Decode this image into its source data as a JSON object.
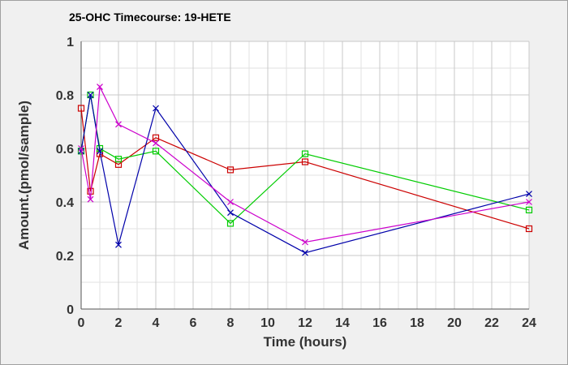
{
  "chart_data": {
    "type": "line",
    "title": "25-OHC Timecourse: 19-HETE",
    "xlabel": "Time (hours)",
    "ylabel": "Amount.(pmol/sample)",
    "xlim": [
      0,
      24
    ],
    "ylim": [
      0,
      1
    ],
    "xticks": [
      0,
      2,
      4,
      6,
      8,
      10,
      12,
      14,
      16,
      18,
      20,
      22,
      24
    ],
    "yticks": [
      0,
      0.2,
      0.4,
      0.6,
      0.8,
      1
    ],
    "ytick_labels": [
      "0",
      "0.2",
      "0.4",
      "0.6",
      "0.8",
      "1"
    ],
    "grid": true,
    "legend": "none",
    "series": [
      {
        "color": "#cc0000",
        "marker": "square",
        "points": [
          [
            0,
            0.75
          ],
          [
            0.5,
            0.44
          ],
          [
            1,
            0.58
          ],
          [
            2,
            0.54
          ],
          [
            4,
            0.64
          ],
          [
            8,
            0.52
          ],
          [
            12,
            0.55
          ],
          [
            24,
            0.3
          ]
        ]
      },
      {
        "color": "#00cc00",
        "marker": "square",
        "points": [
          [
            0,
            0.59
          ],
          [
            0.5,
            0.8
          ],
          [
            1,
            0.6
          ],
          [
            2,
            0.56
          ],
          [
            4,
            0.59
          ],
          [
            8,
            0.32
          ],
          [
            12,
            0.58
          ],
          [
            24,
            0.37
          ]
        ]
      },
      {
        "color": "#0000aa",
        "marker": "x",
        "points": [
          [
            0,
            0.59
          ],
          [
            0.5,
            0.8
          ],
          [
            1,
            0.59
          ],
          [
            2,
            0.24
          ],
          [
            4,
            0.75
          ],
          [
            8,
            0.36
          ],
          [
            12,
            0.21
          ],
          [
            24,
            0.43
          ]
        ]
      },
      {
        "color": "#cc00cc",
        "marker": "x",
        "points": [
          [
            0,
            0.6
          ],
          [
            0.5,
            0.41
          ],
          [
            1,
            0.83
          ],
          [
            2,
            0.69
          ],
          [
            4,
            0.62
          ],
          [
            8,
            0.4
          ],
          [
            12,
            0.25
          ],
          [
            24,
            0.4
          ]
        ]
      }
    ]
  }
}
